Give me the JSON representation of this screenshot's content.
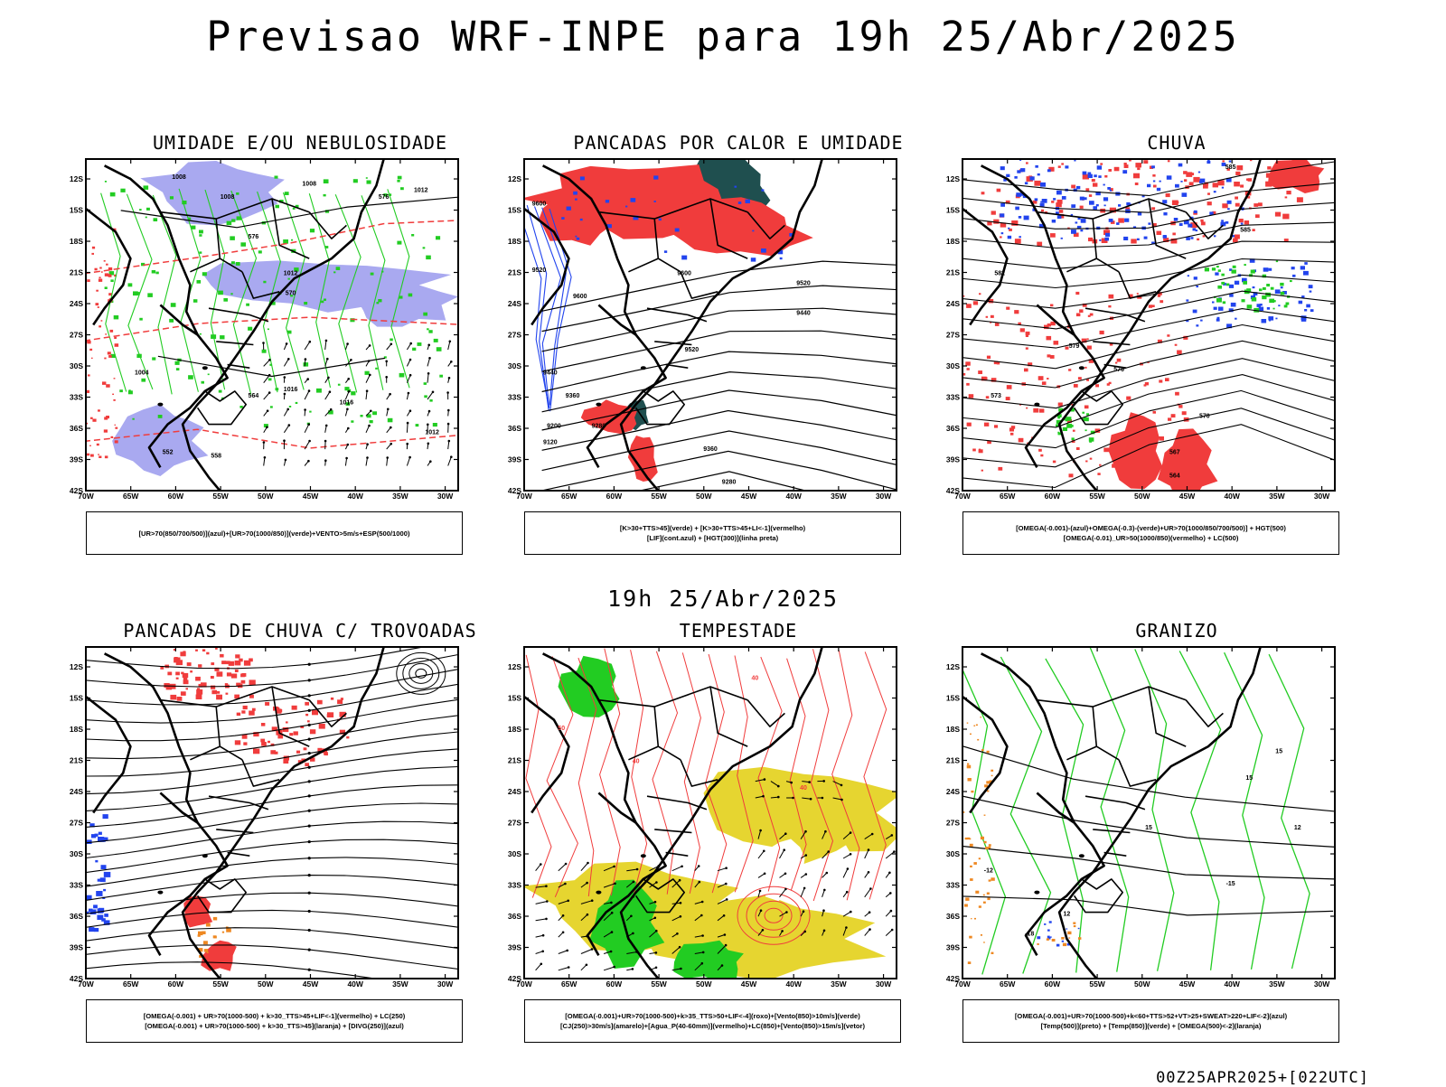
{
  "title": "Previsao WRF-INPE  para 19h 25/Abr/2025",
  "middle_title": "19h 25/Abr/2025",
  "footer": "00Z25APR2025+[022UTC]",
  "axes": {
    "lat_labels": [
      "12S",
      "15S",
      "18S",
      "21S",
      "24S",
      "27S",
      "30S",
      "33S",
      "36S",
      "39S",
      "42S"
    ],
    "lon_labels": [
      "70W",
      "65W",
      "60W",
      "55W",
      "50W",
      "45W",
      "40W",
      "35W",
      "30W"
    ]
  },
  "panels": [
    {
      "title": "UMIDADE E/OU NEBULOSIDADE",
      "legend": [
        "[UR>70(850/700/500)](azul)+[UR>70(1000/850)](verde)+VENTO>5m/s+ESP(500/1000)"
      ],
      "contour_labels": [
        "1008",
        "1008",
        "1008",
        "1012",
        "1012",
        "1004",
        "1016",
        "1016",
        "1012",
        "576",
        "576",
        "570",
        "564",
        "558",
        "552"
      ]
    },
    {
      "title": "PANCADAS POR CALOR E UMIDADE",
      "legend": [
        "[K>30+TTS>45](verde) + [K>30+TTS>45+LI<-1](vermelho)",
        "[LIF](cont.azul) + [HGT(300)](linha preta)"
      ],
      "contour_labels": [
        "9600",
        "9520",
        "9600",
        "9600",
        "9520",
        "9440",
        "9520",
        "9440",
        "9360",
        "9280",
        "9200",
        "9120",
        "9360",
        "9280"
      ]
    },
    {
      "title": "CHUVA",
      "legend": [
        "[OMEGA(-0.001)-(azul)+OMEGA(-0.3)-(verde)+UR>70(1000/850/700/500)] + HGT(500)",
        "[OMEGA(-0.01)_UR>50(1000/850)(vermelho) + LC(500)"
      ],
      "contour_labels": [
        "585",
        "585",
        "582",
        "579",
        "576",
        "573",
        "570",
        "567",
        "564"
      ]
    },
    {
      "title": "PANCADAS DE CHUVA C/ TROVOADAS",
      "legend": [
        "[OMEGA(-0.001) + UR>70(1000-500) + k>30_TTS>45+LIF<-1](vermelho) + LC(250)",
        "[OMEGA(-0.001) + UR>70(1000-500) + k>30_TTS>45](laranja) + [DIVG(250)](azul)"
      ],
      "contour_labels": []
    },
    {
      "title": "TEMPESTADE",
      "legend": [
        "[OMEGA(-0.001)+UR>70(1000-500)+k>35_TTS>50+LIF<-4](roxo)+[Vento(850)>10m/s](verde)",
        "[CJ(250)>30m/s](amarelo)+[Agua_P(40-60mm)](vermelho)+LC(850)+[Vento(850)>15m/s](vetor)"
      ],
      "contour_labels": [
        "50",
        "40",
        "40",
        "40"
      ]
    },
    {
      "title": "GRANIZO",
      "legend": [
        "[OMEGA(-0.001)+UR>70(1000-500)+k<60+TTS>52+VT>25+SWEAT>220+LIF<-2](azul)",
        "[Temp(500)](preto) + [Temp(850)](verde) + [OMEGA(500)<-2](laranja)"
      ],
      "contour_labels": [
        "15",
        "15",
        "15",
        "12",
        "-15",
        "-12",
        "-18",
        "12"
      ]
    }
  ],
  "colors": {
    "red": "#f03c3c",
    "green": "#22cc22",
    "blue": "#2244ee",
    "lav": "#a9a9f0",
    "teal": "#1f4f4f",
    "yellow": "#e6d530",
    "orange": "#ee8822",
    "black": "#000000"
  }
}
